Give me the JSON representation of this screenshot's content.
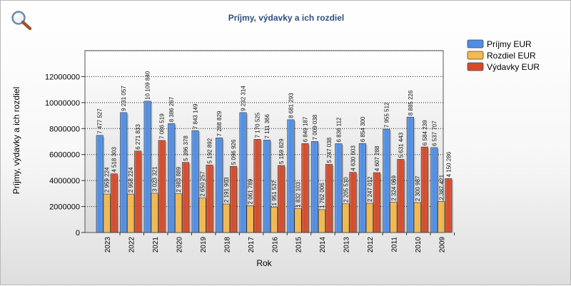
{
  "chart_data": {
    "type": "bar",
    "title": "Príjmy, výdavky a ich rozdiel",
    "xlabel": "Rok",
    "ylabel": "Príjmy, výdavky a ich rozdiel",
    "ylim": [
      0,
      14000000
    ],
    "yticks": [
      0,
      2000000,
      4000000,
      6000000,
      8000000,
      10000000,
      12000000
    ],
    "ytick_labels": [
      "0",
      "2000000",
      "4000000",
      "6000000",
      "8000000",
      "10000000",
      "12000000"
    ],
    "grid": "horizontal dotted",
    "legend_position": "top-right",
    "categories": [
      "2023",
      "2022",
      "2021",
      "2020",
      "2019",
      "2018",
      "2017",
      "2016",
      "2015",
      "2014",
      "2013",
      "2012",
      "2011",
      "2010",
      "2009"
    ],
    "series": [
      {
        "name": "Príjmy EUR",
        "color": "#4f8ee6",
        "values": [
          7477527,
          9231057,
          10109840,
          8386267,
          7843149,
          7288829,
          9232314,
          7111366,
          8681293,
          7009038,
          6836112,
          6854300,
          7955512,
          8885226,
          6537707
        ],
        "labels": [
          "7 477 527",
          "9 231 057",
          "10 109 840",
          "8 386 267",
          "7 843 149",
          "7 288 829",
          "9 232 314",
          "7 111 366",
          "8 681 293",
          "7 009 038",
          "6 836 112",
          "6 854 300",
          "7 955 512",
          "8 885 226",
          "6 537 707"
        ]
      },
      {
        "name": "Rozdiel EUR",
        "color": "#f5b94c",
        "values": [
          2959224,
          2958224,
          3023321,
          2983889,
          2650257,
          2191903,
          2061789,
          1951537,
          1832103,
          1762006,
          2205510,
          2247012,
          2324069,
          2300987,
          2387421
        ],
        "labels": [
          "2 959 224",
          "2 958 224",
          "3 023 321",
          "2 983 889",
          "2 650 257",
          "2 191 903",
          "2 061 789",
          "1 951 537",
          "1 832 103",
          "1 762 006",
          "2 205 510",
          "2 247 012",
          "2 324 069",
          "2 300 987",
          "2 387 421"
        ]
      },
      {
        "name": "Výdavky EUR",
        "color": "#d64a2a",
        "values": [
          4518303,
          6271833,
          7086519,
          5396378,
          5192892,
          5096926,
          7170525,
          5159829,
          6849187,
          5247038,
          4630603,
          4607288,
          5631443,
          6584239,
          4150286
        ],
        "labels": [
          "4 518 303",
          "6 271 833",
          "7 086 519",
          "5 396 378",
          "5 192 892",
          "5 096 926",
          "7 170 525",
          "5 159 829",
          "6 849 187",
          "5 247 038",
          "4 630 603",
          "4 607 288",
          "5 631 443",
          "6 584 239",
          "4 150 286"
        ]
      }
    ]
  },
  "icons": {
    "zoom": "magnifier-icon"
  }
}
